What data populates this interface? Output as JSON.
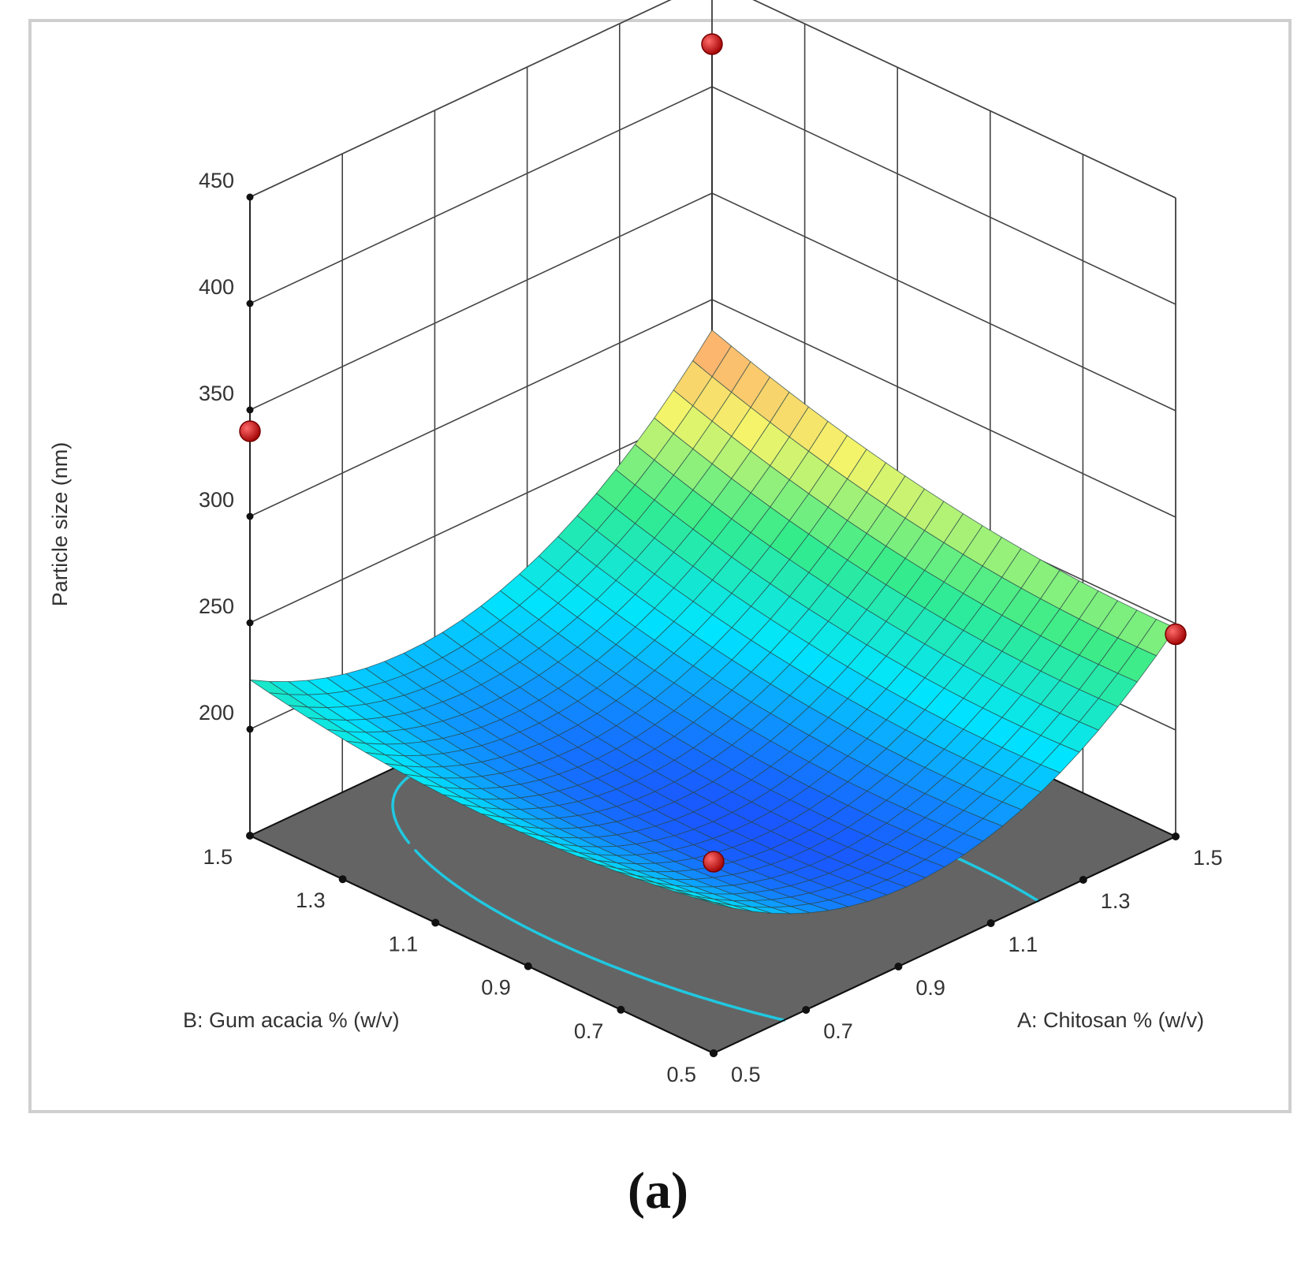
{
  "panel_label": "(a)",
  "chart_data": {
    "type": "surface3d",
    "title": "",
    "zlabel": "Particle size  (nm)",
    "xlabel": "A: Chitosan % (w/v)",
    "ylabel": "B: Gum acacia % (w/v)",
    "x_range": [
      0.5,
      1.5
    ],
    "y_range": [
      0.5,
      1.5
    ],
    "z_range": [
      150,
      450
    ],
    "x_ticks": [
      "0.5",
      "0.7",
      "0.9",
      "1.1",
      "1.3",
      "1.5"
    ],
    "y_ticks": [
      "0.5",
      "0.7",
      "0.9",
      "1.1",
      "1.3",
      "1.5"
    ],
    "z_ticks": [
      "200",
      "250",
      "300",
      "350",
      "400",
      "450"
    ],
    "grid": true,
    "floor_color": "#646464",
    "surface": {
      "model": "Particle size = 182 + 190*(A-0.9)^2 + 42*(B-0.8)^2 + 35*(A-0.9)*(B-0.8)",
      "colormap": [
        "#1a55ff",
        "#00e4ff",
        "#35ec8a",
        "#f4f56a",
        "#ffa070"
      ]
    },
    "contours": [
      {
        "level": 200,
        "color": "#20c8e0"
      },
      {
        "level": 250,
        "color": "#30d590"
      },
      {
        "level": 300,
        "color": "#58ea3a"
      },
      {
        "level": 350,
        "color": "#d4e63a"
      },
      {
        "level": 400,
        "color": "#ffc000"
      }
    ],
    "design_points": [
      {
        "A": 1.5,
        "B": 1.5,
        "particle_size": 420
      },
      {
        "A": 0.5,
        "B": 1.5,
        "particle_size": 340
      },
      {
        "A": 1.5,
        "B": 0.5,
        "particle_size": 245
      },
      {
        "A": 0.5,
        "B": 0.5,
        "particle_size": 240
      }
    ],
    "point_color": "#c80000"
  }
}
